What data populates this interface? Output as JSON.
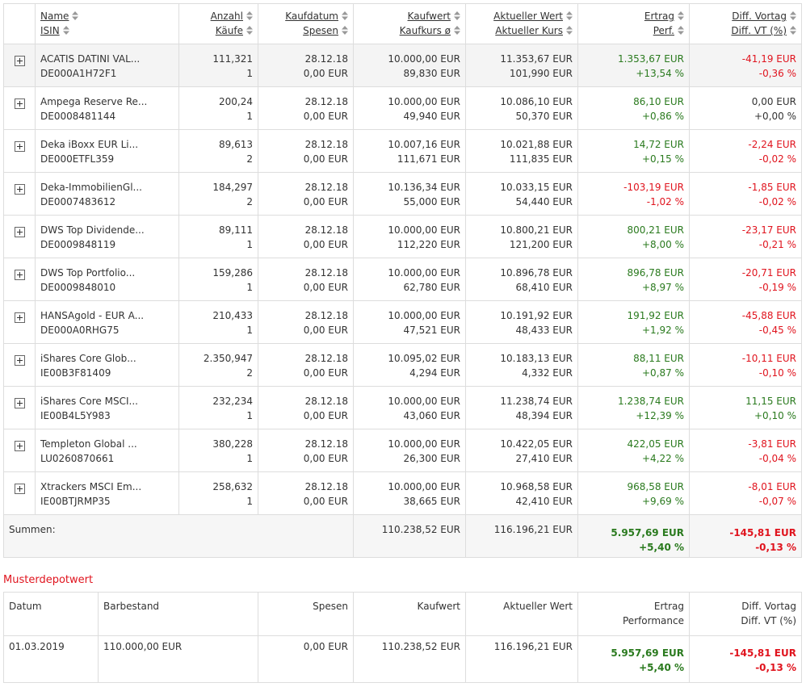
{
  "portfolio_table": {
    "headers": [
      [
        "Name",
        "ISIN"
      ],
      [
        "Anzahl",
        "Käufe"
      ],
      [
        "Kaufdatum",
        "Spesen"
      ],
      [
        "Kaufwert",
        "Kaufkurs ø"
      ],
      [
        "Aktueller Wert",
        "Aktueller Kurs"
      ],
      [
        "Ertrag",
        "Perf."
      ],
      [
        "Diff. Vortag",
        "Diff. VT (%)"
      ]
    ],
    "rows": [
      [
        [
          "ACATIS DATINI VAL...",
          "DE000A1H72F1"
        ],
        [
          "111,321",
          "1"
        ],
        [
          "28.12.18",
          "0,00 EUR"
        ],
        [
          "10.000,00 EUR",
          "89,830 EUR"
        ],
        [
          "11.353,67 EUR",
          "101,990 EUR"
        ],
        [
          "1.353,67 EUR",
          "+13,54 %"
        ],
        [
          "-41,19 EUR",
          "-0,36 %"
        ]
      ],
      [
        [
          "Ampega Reserve Re...",
          "DE0008481144"
        ],
        [
          "200,24",
          "1"
        ],
        [
          "28.12.18",
          "0,00 EUR"
        ],
        [
          "10.000,00 EUR",
          "49,940 EUR"
        ],
        [
          "10.086,10 EUR",
          "50,370 EUR"
        ],
        [
          "86,10 EUR",
          "+0,86 %"
        ],
        [
          "0,00 EUR",
          "+0,00 %"
        ]
      ],
      [
        [
          "Deka iBoxx EUR Li...",
          "DE000ETFL359"
        ],
        [
          "89,613",
          "2"
        ],
        [
          "28.12.18",
          "0,00 EUR"
        ],
        [
          "10.007,16 EUR",
          "111,671 EUR"
        ],
        [
          "10.021,88 EUR",
          "111,835 EUR"
        ],
        [
          "14,72 EUR",
          "+0,15 %"
        ],
        [
          "-2,24 EUR",
          "-0,02 %"
        ]
      ],
      [
        [
          "Deka-ImmobilienGl...",
          "DE0007483612"
        ],
        [
          "184,297",
          "2"
        ],
        [
          "28.12.18",
          "0,00 EUR"
        ],
        [
          "10.136,34 EUR",
          "55,000 EUR"
        ],
        [
          "10.033,15 EUR",
          "54,440 EUR"
        ],
        [
          "-103,19 EUR",
          "-1,02 %"
        ],
        [
          "-1,85 EUR",
          "-0,02 %"
        ]
      ],
      [
        [
          "DWS Top Dividende...",
          "DE0009848119"
        ],
        [
          "89,111",
          "1"
        ],
        [
          "28.12.18",
          "0,00 EUR"
        ],
        [
          "10.000,00 EUR",
          "112,220 EUR"
        ],
        [
          "10.800,21 EUR",
          "121,200 EUR"
        ],
        [
          "800,21 EUR",
          "+8,00 %"
        ],
        [
          "-23,17 EUR",
          "-0,21 %"
        ]
      ],
      [
        [
          "DWS Top Portfolio...",
          "DE0009848010"
        ],
        [
          "159,286",
          "1"
        ],
        [
          "28.12.18",
          "0,00 EUR"
        ],
        [
          "10.000,00 EUR",
          "62,780 EUR"
        ],
        [
          "10.896,78 EUR",
          "68,410 EUR"
        ],
        [
          "896,78 EUR",
          "+8,97 %"
        ],
        [
          "-20,71 EUR",
          "-0,19 %"
        ]
      ],
      [
        [
          "HANSAgold - EUR A...",
          "DE000A0RHG75"
        ],
        [
          "210,433",
          "1"
        ],
        [
          "28.12.18",
          "0,00 EUR"
        ],
        [
          "10.000,00 EUR",
          "47,521 EUR"
        ],
        [
          "10.191,92 EUR",
          "48,433 EUR"
        ],
        [
          "191,92 EUR",
          "+1,92 %"
        ],
        [
          "-45,88 EUR",
          "-0,45 %"
        ]
      ],
      [
        [
          "iShares Core Glob...",
          "IE00B3F81409"
        ],
        [
          "2.350,947",
          "2"
        ],
        [
          "28.12.18",
          "0,00 EUR"
        ],
        [
          "10.095,02 EUR",
          "4,294 EUR"
        ],
        [
          "10.183,13 EUR",
          "4,332 EUR"
        ],
        [
          "88,11 EUR",
          "+0,87 %"
        ],
        [
          "-10,11 EUR",
          "-0,10 %"
        ]
      ],
      [
        [
          "iShares Core MSCI...",
          "IE00B4L5Y983"
        ],
        [
          "232,234",
          "1"
        ],
        [
          "28.12.18",
          "0,00 EUR"
        ],
        [
          "10.000,00 EUR",
          "43,060 EUR"
        ],
        [
          "11.238,74 EUR",
          "48,394 EUR"
        ],
        [
          "1.238,74 EUR",
          "+12,39 %"
        ],
        [
          "11,15 EUR",
          "+0,10 %"
        ]
      ],
      [
        [
          "Templeton Global ...",
          "LU0260870661"
        ],
        [
          "380,228",
          "1"
        ],
        [
          "28.12.18",
          "0,00 EUR"
        ],
        [
          "10.000,00 EUR",
          "26,300 EUR"
        ],
        [
          "10.422,05 EUR",
          "27,410 EUR"
        ],
        [
          "422,05 EUR",
          "+4,22 %"
        ],
        [
          "-3,81 EUR",
          "-0,04 %"
        ]
      ],
      [
        [
          "Xtrackers MSCI Em...",
          "IE00BTJRMP35"
        ],
        [
          "258,632",
          "1"
        ],
        [
          "28.12.18",
          "0,00 EUR"
        ],
        [
          "10.000,00 EUR",
          "38,665 EUR"
        ],
        [
          "10.968,58 EUR",
          "42,410 EUR"
        ],
        [
          "968,58 EUR",
          "+9,69 %"
        ],
        [
          "-8,01 EUR",
          "-0,07 %"
        ]
      ]
    ],
    "totals": {
      "label": "Summen:",
      "kaufwert": "110.238,52 EUR",
      "aktueller_wert": "116.196,21 EUR",
      "ertrag": [
        "5.957,69 EUR",
        "+5,40 %"
      ],
      "diff": [
        "-145,81 EUR",
        "-0,13 %"
      ]
    }
  },
  "musterdepot": {
    "title": "Musterdepotwert",
    "headers": [
      [
        "Datum"
      ],
      [
        "Barbestand"
      ],
      [
        "Spesen"
      ],
      [
        "Kaufwert"
      ],
      [
        "Aktueller Wert"
      ],
      [
        "Ertrag",
        "Performance"
      ],
      [
        "Diff. Vortag",
        "Diff. VT (%)"
      ]
    ],
    "row": [
      [
        "01.03.2019"
      ],
      [
        "110.000,00 EUR"
      ],
      [
        "0,00 EUR"
      ],
      [
        "110.238,52 EUR"
      ],
      [
        "116.196,21 EUR"
      ],
      [
        "5.957,69 EUR",
        "+5,40 %"
      ],
      [
        "-145,81 EUR",
        "-0,13 %"
      ]
    ]
  }
}
